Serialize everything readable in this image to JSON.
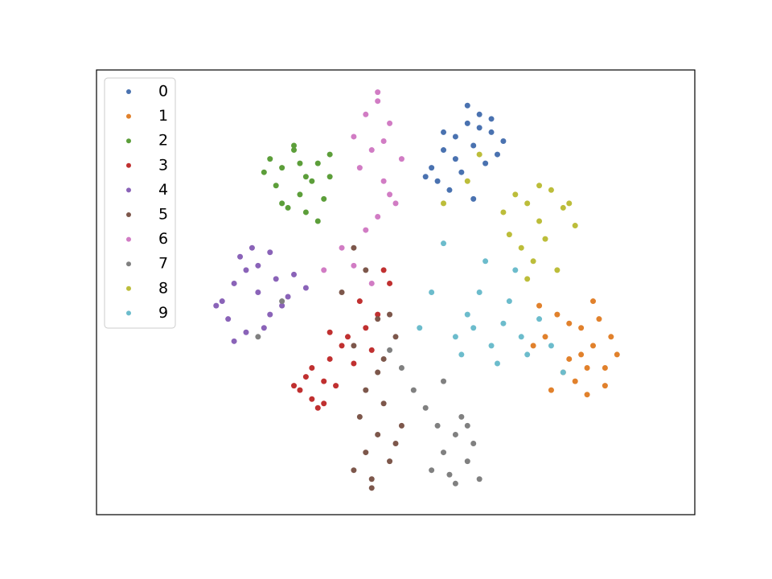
{
  "chart_data": {
    "type": "scatter",
    "xlim": [
      0,
      100
    ],
    "ylim": [
      0,
      100
    ],
    "legend": "upper left",
    "series": [
      {
        "name": "0",
        "color": "#4a72b0",
        "x": [
          56,
          58,
          60,
          62,
          64,
          66,
          68,
          60,
          63,
          65,
          57,
          61,
          67,
          59,
          62,
          64,
          55,
          66,
          63,
          58
        ],
        "values": [
          78,
          82,
          85,
          88,
          90,
          86,
          84,
          80,
          83,
          79,
          75,
          77,
          81,
          73,
          92,
          87,
          76,
          89,
          71,
          86
        ]
      },
      {
        "name": "1",
        "color": "#e1812c",
        "x": [
          75,
          77,
          79,
          81,
          83,
          85,
          87,
          80,
          82,
          84,
          78,
          86,
          74,
          81,
          83,
          76,
          85,
          79,
          82,
          73
        ],
        "values": [
          40,
          45,
          35,
          42,
          38,
          33,
          36,
          30,
          27,
          44,
          32,
          40,
          47,
          36,
          48,
          28,
          29,
          43,
          33,
          38
        ]
      },
      {
        "name": "2",
        "color": "#5c9e3a",
        "x": [
          29,
          31,
          33,
          35,
          37,
          39,
          30,
          34,
          36,
          38,
          32,
          28,
          35,
          33,
          37,
          31,
          39,
          34
        ],
        "values": [
          80,
          78,
          82,
          76,
          79,
          81,
          74,
          72,
          75,
          71,
          69,
          77,
          68,
          83,
          66,
          70,
          76,
          79
        ]
      },
      {
        "name": "3",
        "color": "#c03030",
        "x": [
          34,
          36,
          38,
          35,
          37,
          39,
          41,
          43,
          45,
          47,
          49,
          40,
          42,
          44,
          46,
          36,
          38,
          48,
          33,
          39
        ],
        "values": [
          28,
          26,
          30,
          31,
          24,
          35,
          38,
          34,
          42,
          45,
          52,
          29,
          40,
          48,
          37,
          33,
          25,
          55,
          29,
          41
        ]
      },
      {
        "name": "4",
        "color": "#8a63b8",
        "x": [
          21,
          23,
          25,
          27,
          29,
          31,
          22,
          24,
          26,
          28,
          30,
          32,
          25,
          27,
          20,
          29,
          33,
          35,
          23
        ],
        "values": [
          48,
          52,
          55,
          50,
          45,
          47,
          44,
          58,
          60,
          42,
          53,
          49,
          41,
          56,
          47,
          59,
          54,
          51,
          39
        ]
      },
      {
        "name": "5",
        "color": "#7d574b",
        "x": [
          43,
          45,
          47,
          49,
          51,
          44,
          46,
          48,
          50,
          45,
          47,
          43,
          49,
          41,
          45,
          47,
          43,
          50,
          46,
          48
        ],
        "values": [
          10,
          14,
          18,
          12,
          20,
          22,
          6,
          25,
          16,
          28,
          32,
          38,
          45,
          50,
          55,
          44,
          60,
          40,
          8,
          35
        ]
      },
      {
        "name": "6",
        "color": "#d17cc4",
        "x": [
          43,
          45,
          47,
          49,
          51,
          44,
          46,
          48,
          50,
          47,
          45,
          49,
          41,
          43,
          47,
          46,
          48,
          38
        ],
        "values": [
          85,
          90,
          93,
          88,
          80,
          78,
          82,
          75,
          70,
          67,
          64,
          72,
          60,
          56,
          95,
          52,
          84,
          55
        ]
      },
      {
        "name": "7",
        "color": "#808080",
        "x": [
          56,
          58,
          60,
          62,
          64,
          57,
          59,
          61,
          63,
          55,
          53,
          51,
          49,
          60,
          62,
          58,
          27,
          31
        ],
        "values": [
          10,
          14,
          18,
          12,
          8,
          20,
          9,
          22,
          16,
          24,
          28,
          33,
          37,
          7,
          20,
          30,
          40,
          48
        ]
      },
      {
        "name": "8",
        "color": "#bcbd3a",
        "x": [
          68,
          70,
          72,
          74,
          76,
          78,
          80,
          71,
          73,
          75,
          77,
          79,
          69,
          74,
          72,
          62,
          64,
          58
        ],
        "values": [
          68,
          72,
          70,
          66,
          73,
          69,
          65,
          60,
          57,
          62,
          55,
          70,
          63,
          74,
          53,
          75,
          81,
          70
        ]
      },
      {
        "name": "9",
        "color": "#6cbccc",
        "x": [
          60,
          62,
          64,
          66,
          68,
          70,
          72,
          61,
          63,
          65,
          67,
          69,
          71,
          74,
          76,
          78,
          56,
          54,
          58
        ],
        "values": [
          40,
          45,
          50,
          38,
          43,
          55,
          36,
          36,
          42,
          57,
          34,
          48,
          40,
          44,
          38,
          32,
          50,
          42,
          61
        ]
      }
    ]
  }
}
